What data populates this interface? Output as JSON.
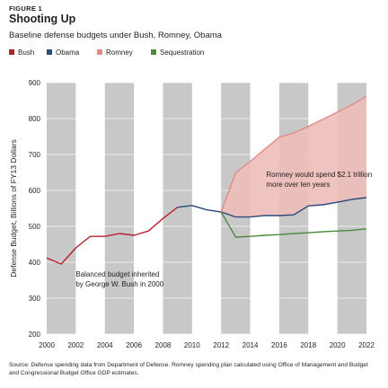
{
  "figure_label": "FIGURE 1",
  "title": "Shooting Up",
  "subtitle": "Baseline defense budgets under Bush, Romney, Obama",
  "source": "Source: Defense spending data from Department of Defense. Romney spending plan calculated using Office of Management and Budget and Congressional Budget Office GDP estimates.",
  "colors": {
    "bush": "#b5202e",
    "obama": "#2c4a7a",
    "romney_line": "#e48a86",
    "romney_fill": "#ecbcb9",
    "sequestration": "#4e8a3c",
    "stripe": "#c8c8c8"
  },
  "chart_data": {
    "type": "line",
    "title": "Shooting Up",
    "subtitle": "Baseline defense budgets under Bush, Romney, Obama",
    "xlabel": "",
    "ylabel": "Defense Budget, Billions of FY13 Dollars",
    "xlim": [
      2000,
      2022
    ],
    "ylim": [
      200,
      900
    ],
    "x_ticks": [
      "2000",
      "2002",
      "2004",
      "2006",
      "2008",
      "2010",
      "2012",
      "2014",
      "2016",
      "2018",
      "2020",
      "2022"
    ],
    "y_ticks": [
      "200",
      "300",
      "400",
      "500",
      "600",
      "700",
      "800",
      "900"
    ],
    "background": "alternating gray vertical bands, one per two years",
    "legend_position": "top-left",
    "series": [
      {
        "name": "Bush",
        "color_key": "bush",
        "x": [
          2000,
          2001,
          2002,
          2003,
          2004,
          2005,
          2006,
          2007,
          2008,
          2009
        ],
        "y": [
          412,
          395,
          440,
          472,
          472,
          480,
          475,
          487,
          522,
          553
        ]
      },
      {
        "name": "Obama",
        "color_key": "obama",
        "x": [
          2009,
          2010,
          2011,
          2012,
          2013,
          2014,
          2015,
          2016,
          2017,
          2018,
          2019,
          2020,
          2021,
          2022
        ],
        "y": [
          553,
          558,
          546,
          540,
          526,
          526,
          530,
          530,
          532,
          557,
          560,
          567,
          575,
          580
        ]
      },
      {
        "name": "Romney",
        "color_key": "romney_line",
        "x": [
          2012,
          2013,
          2014,
          2015,
          2016,
          2017,
          2018,
          2019,
          2020,
          2021,
          2022
        ],
        "y": [
          540,
          650,
          680,
          715,
          748,
          760,
          778,
          798,
          818,
          838,
          862
        ]
      },
      {
        "name": "Sequestration",
        "color_key": "sequestration",
        "x": [
          2012,
          2013,
          2014,
          2015,
          2016,
          2017,
          2018,
          2019,
          2020,
          2021,
          2022
        ],
        "y": [
          540,
          470,
          472,
          475,
          477,
          480,
          482,
          485,
          487,
          489,
          493
        ]
      }
    ],
    "annotations": [
      {
        "lines": [
          "Romney would spend $2.1 trillion",
          "more over ten years"
        ],
        "x": 2015.1,
        "y": 618
      },
      {
        "lines": [
          "Balanced budget inherited",
          "by George W. Bush in 2000"
        ],
        "x": 2002.0,
        "y": 340
      }
    ]
  }
}
